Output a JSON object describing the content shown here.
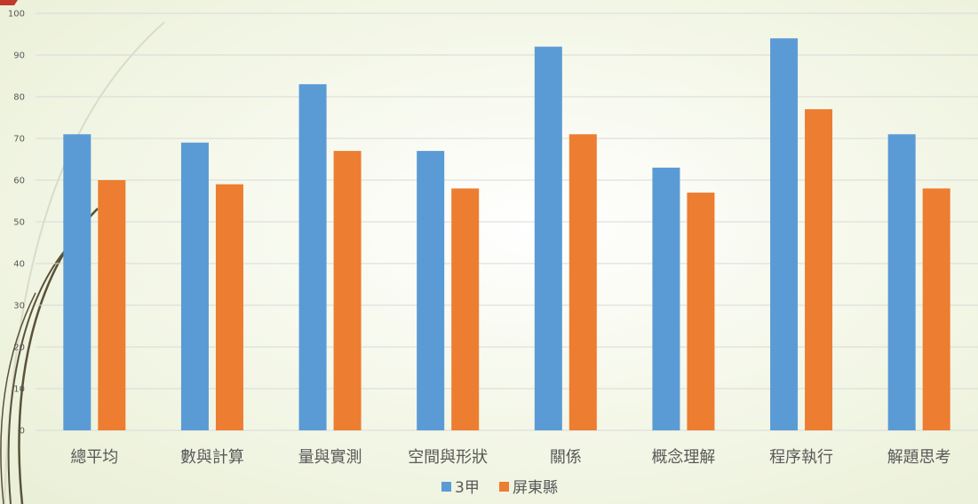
{
  "chart_data": {
    "type": "bar",
    "categories": [
      "總平均",
      "數與計算",
      "量與實測",
      "空間與形狀",
      "關係",
      "概念理解",
      "程序執行",
      "解題思考"
    ],
    "series": [
      {
        "name": "3甲",
        "values": [
          71,
          69,
          83,
          67,
          92,
          63,
          94,
          71
        ],
        "color": "#5b9bd5"
      },
      {
        "name": "屏東縣",
        "values": [
          60,
          59,
          67,
          58,
          71,
          57,
          77,
          58
        ],
        "color": "#ed7d31"
      }
    ],
    "ylim": [
      0,
      100
    ],
    "yticks": [
      0,
      10,
      20,
      30,
      40,
      50,
      60,
      70,
      80,
      90,
      100
    ],
    "grid": true,
    "legend_position": "bottom"
  },
  "decor": {
    "corner_accent_color": "#c0392b",
    "swirl_color": "#5a5238"
  }
}
